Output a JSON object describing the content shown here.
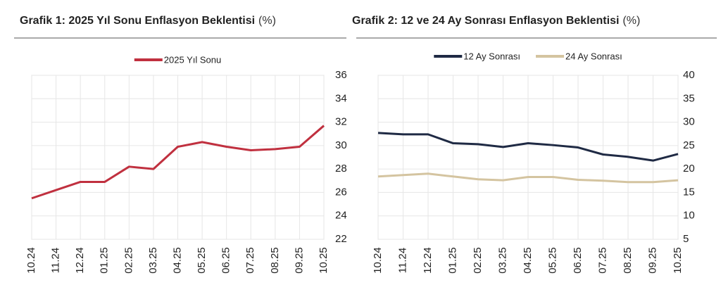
{
  "chart_data": [
    {
      "type": "line",
      "title": "Grafik 1: 2025 Yıl Sonu Enflasyon Beklentisi",
      "unit": "(%)",
      "categories": [
        "10.24",
        "11.24",
        "12.24",
        "01.25",
        "02.25",
        "03.25",
        "04.25",
        "05.25",
        "06.25",
        "07.25",
        "08.25",
        "09.25",
        "10.25"
      ],
      "series": [
        {
          "name": "2025 Yıl Sonu",
          "color": "#c0303f",
          "values": [
            25.5,
            26.2,
            26.9,
            26.9,
            28.2,
            28.0,
            29.9,
            30.3,
            29.9,
            29.6,
            29.7,
            29.9,
            31.7
          ]
        }
      ],
      "ylim": [
        22,
        36
      ],
      "yticks": [
        22,
        24,
        26,
        28,
        30,
        32,
        34,
        36
      ],
      "grid": true
    },
    {
      "type": "line",
      "title": "Grafik 2: 12 ve 24 Ay Sonrası Enflasyon Beklentisi",
      "unit": "(%)",
      "categories": [
        "10.24",
        "11.24",
        "12.24",
        "01.25",
        "02.25",
        "03.25",
        "04.25",
        "05.25",
        "06.25",
        "07.25",
        "08.25",
        "09.25",
        "10.25"
      ],
      "series": [
        {
          "name": "12 Ay Sonrası",
          "color": "#1f2a44",
          "values": [
            27.7,
            27.4,
            27.4,
            25.5,
            25.3,
            24.7,
            25.5,
            25.1,
            24.6,
            23.1,
            22.6,
            21.8,
            23.2
          ]
        },
        {
          "name": "24 Ay Sonrası",
          "color": "#d4c4a0",
          "values": [
            18.4,
            18.7,
            19.0,
            18.4,
            17.8,
            17.6,
            18.3,
            18.3,
            17.7,
            17.5,
            17.2,
            17.2,
            17.6
          ]
        }
      ],
      "ylim": [
        5,
        40
      ],
      "yticks": [
        5,
        10,
        15,
        20,
        25,
        30,
        35,
        40
      ],
      "grid": true
    }
  ]
}
